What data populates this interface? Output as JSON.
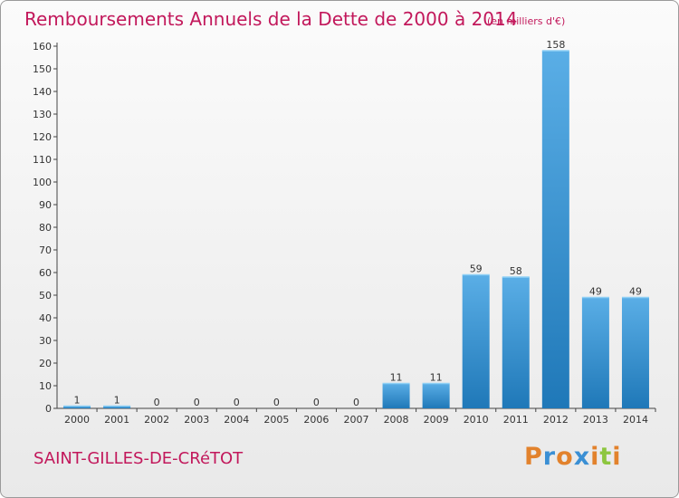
{
  "header": {
    "title": "Remboursements Annuels de la Dette de 2000 à 2014",
    "unit": "(en milliers d'€)"
  },
  "footer": {
    "place": "SAINT-GILLES-DE-CRéTOT",
    "logo": "Proxiti"
  },
  "colors": {
    "title": "#c2185b",
    "bar_light": "#5aaee6",
    "bar_dark": "#1f78b8",
    "logo_letters": [
      "#e2822c",
      "#3a8fd4",
      "#e2822c",
      "#3a8fd4",
      "#e2822c",
      "#8dc63f",
      "#e2822c"
    ]
  },
  "chart_data": {
    "type": "bar",
    "title": "Remboursements Annuels de la Dette de 2000 à 2014",
    "subtitle": "(en milliers d'€)",
    "xlabel": "",
    "ylabel": "",
    "categories": [
      "2000",
      "2001",
      "2002",
      "2003",
      "2004",
      "2005",
      "2006",
      "2007",
      "2008",
      "2009",
      "2010",
      "2011",
      "2012",
      "2013",
      "2014"
    ],
    "values": [
      1,
      1,
      0,
      0,
      0,
      0,
      0,
      0,
      11,
      11,
      59,
      58,
      158,
      49,
      49
    ],
    "ylim": [
      0,
      160
    ],
    "yticks": [
      0,
      10,
      20,
      30,
      40,
      50,
      60,
      70,
      80,
      90,
      100,
      110,
      120,
      130,
      140,
      150,
      160
    ],
    "grid": false,
    "legend": "none",
    "data_labels": true
  }
}
